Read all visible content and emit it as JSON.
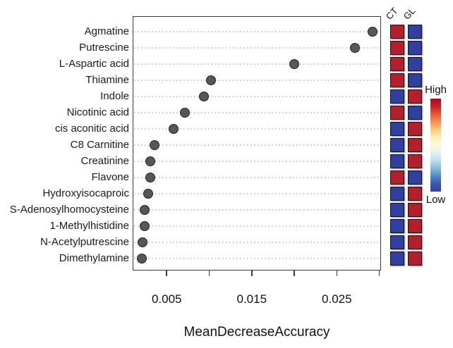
{
  "chart_data": {
    "type": "scatter",
    "title": "",
    "xlabel": "MeanDecreaseAccuracy",
    "xlim": [
      0.001,
      0.0302
    ],
    "grid": "dotted-horizontal",
    "legend_position": "right",
    "x_ticks": [
      {
        "value": 0.005,
        "label": "0.005"
      },
      {
        "value": 0.01,
        "label": ""
      },
      {
        "value": 0.015,
        "label": "0.015"
      },
      {
        "value": 0.02,
        "label": ""
      },
      {
        "value": 0.025,
        "label": "0.025"
      },
      {
        "value": 0.03,
        "label": ""
      }
    ],
    "rows": [
      {
        "label": "Agmatine",
        "value": 0.0292,
        "ct": "high",
        "gl": "low"
      },
      {
        "label": "Putrescine",
        "value": 0.0271,
        "ct": "high",
        "gl": "low"
      },
      {
        "label": "L-Aspartic acid",
        "value": 0.02,
        "ct": "high",
        "gl": "low"
      },
      {
        "label": "Thiamine",
        "value": 0.0102,
        "ct": "high",
        "gl": "low"
      },
      {
        "label": "Indole",
        "value": 0.0094,
        "ct": "low",
        "gl": "high"
      },
      {
        "label": "Nicotinic acid",
        "value": 0.0071,
        "ct": "high",
        "gl": "low"
      },
      {
        "label": "cis aconitic acid",
        "value": 0.0058,
        "ct": "low",
        "gl": "high"
      },
      {
        "label": "C8 Carnitine",
        "value": 0.0036,
        "ct": "low",
        "gl": "high"
      },
      {
        "label": "Creatinine",
        "value": 0.0031,
        "ct": "low",
        "gl": "high"
      },
      {
        "label": "Flavone",
        "value": 0.0031,
        "ct": "high",
        "gl": "low"
      },
      {
        "label": "Hydroxyisocaproic",
        "value": 0.0028,
        "ct": "low",
        "gl": "high"
      },
      {
        "label": "S-Adenosylhomocysteine",
        "value": 0.0024,
        "ct": "low",
        "gl": "high"
      },
      {
        "label": "1-Methylhistidine",
        "value": 0.0024,
        "ct": "low",
        "gl": "high"
      },
      {
        "label": "N-Acetylputrescine",
        "value": 0.0022,
        "ct": "low",
        "gl": "high"
      },
      {
        "label": "Dimethylamine",
        "value": 0.0021,
        "ct": "low",
        "gl": "high"
      }
    ],
    "heatmap": {
      "columns": [
        "CT",
        "GL"
      ]
    },
    "colorbar": {
      "high_label": "High",
      "low_label": "Low",
      "stops": [
        "#a01026",
        "#c32227",
        "#e35a35",
        "#f69153",
        "#fdc97c",
        "#feeeb0",
        "#fdfbd8",
        "#e4f2f0",
        "#bcdeec",
        "#86badc",
        "#5089c2",
        "#3a58ab",
        "#3347a2"
      ]
    },
    "colors": {
      "dot_fill": "#575757",
      "dot_border": "#222222",
      "heat_high": "#b2202d",
      "heat_low": "#31409e",
      "grid": "#c6c6c6",
      "axis": "#3a3a3a"
    }
  }
}
